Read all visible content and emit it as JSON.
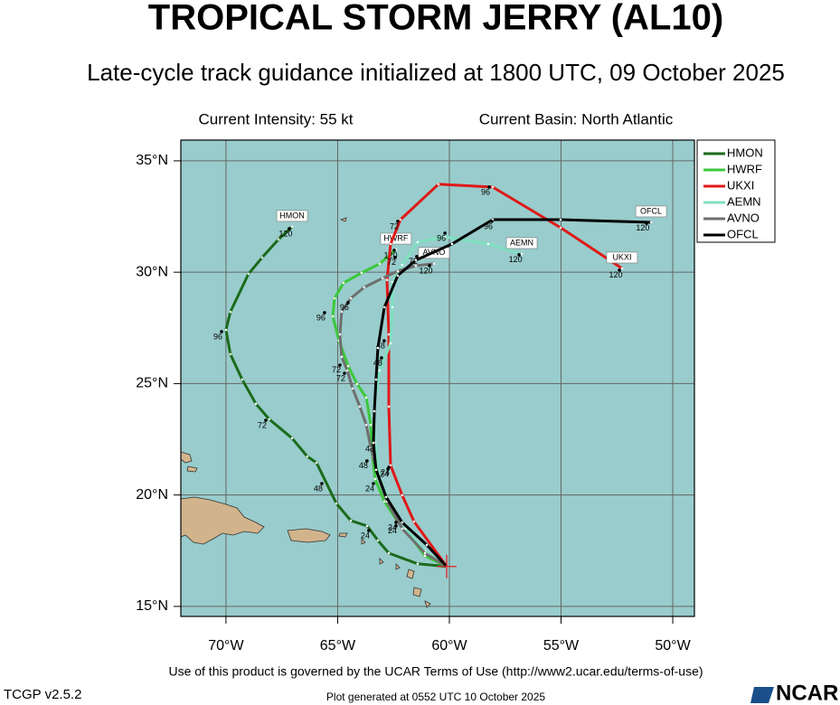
{
  "chart_data": {
    "type": "line",
    "title": "TROPICAL STORM JERRY (AL10)",
    "subtitle": "Late-cycle track guidance initialized at 1800 UTC, 09 October 2025",
    "info_left": "Current Intensity: 55 kt",
    "info_right": "Current Basin: North Atlantic",
    "footer": "Use of this product is governed by the UCAR Terms of Use (http://www2.ucar.edu/terms-of-use)",
    "version": "TCGP v2.5.2",
    "generated": "Plot generated at 0552 UTC   10 October 2025",
    "logo": "NCAR",
    "xlim": [
      -72.02,
      -49.03
    ],
    "ylim": [
      14.55,
      35.93
    ],
    "xticks": [
      {
        "value": -70,
        "label": "70°W"
      },
      {
        "value": -65,
        "label": "65°W"
      },
      {
        "value": -60,
        "label": "60°W"
      },
      {
        "value": -55,
        "label": "55°W"
      },
      {
        "value": -50,
        "label": "50°W"
      }
    ],
    "yticks": [
      {
        "value": 15,
        "label": "15°N"
      },
      {
        "value": 20,
        "label": "20°N"
      },
      {
        "value": 25,
        "label": "25°N"
      },
      {
        "value": 30,
        "label": "30°N"
      },
      {
        "value": 35,
        "label": "35°N"
      }
    ],
    "grid": true,
    "legend": "outside-top-right",
    "current_position": {
      "x": -60.12,
      "y": 16.79,
      "color": "#e02020"
    },
    "series": [
      {
        "name": "HMON",
        "color": "#1b6b1b",
        "x": [
          -60.12,
          -61.42,
          -62.71,
          -63.2,
          -63.68,
          -64.41,
          -65.06,
          -65.95,
          -66.36,
          -67.04,
          -68.06,
          -68.66,
          -69.27,
          -69.8,
          -70.0,
          -69.8,
          -68.99,
          -68.38,
          -67.65,
          -67.04
        ],
        "values": [
          16.79,
          16.91,
          17.39,
          17.96,
          18.61,
          18.85,
          19.62,
          21.45,
          21.73,
          22.55,
          23.4,
          24.09,
          25.18,
          26.32,
          27.41,
          28.22,
          29.93,
          30.66,
          31.47,
          32.04
        ],
        "hour_labels": [
          {
            "label": "24",
            "x": -63.77,
            "y": 18.16
          },
          {
            "label": "48",
            "x": -65.87,
            "y": 20.27
          },
          {
            "label": "72",
            "x": -68.38,
            "y": 23.11
          },
          {
            "label": "96",
            "x": -70.36,
            "y": 27.09
          },
          {
            "label": "120",
            "x": -67.33,
            "y": 31.71
          }
        ]
      },
      {
        "name": "HWRF",
        "color": "#3cc83c",
        "x": [
          -60.12,
          -61.09,
          -61.7,
          -62.31,
          -62.91,
          -63.32,
          -63.44,
          -63.52,
          -63.72,
          -64.13,
          -64.53,
          -64.94,
          -65.22,
          -65.14,
          -64.74,
          -63.93,
          -63.12,
          -62.39
        ],
        "values": [
          16.79,
          17.27,
          18.08,
          18.81,
          19.71,
          20.72,
          21.73,
          23.15,
          24.37,
          24.98,
          25.79,
          26.93,
          28.02,
          28.83,
          29.52,
          29.97,
          30.38,
          31.02
        ],
        "hour_labels": [
          {
            "label": "24",
            "x": -63.56,
            "y": 20.27
          },
          {
            "label": "48",
            "x": -63.85,
            "y": 21.29
          },
          {
            "label": "72",
            "x": -64.86,
            "y": 25.22
          },
          {
            "label": "96",
            "x": -65.75,
            "y": 27.94
          },
          {
            "label": "120",
            "x": -62.63,
            "y": 30.74
          }
        ]
      },
      {
        "name": "UKXI",
        "color": "#e01818",
        "x": [
          -60.12,
          -61.58,
          -62.11,
          -62.63,
          -62.71,
          -62.71,
          -62.79,
          -62.63,
          -62.19,
          -60.49,
          -58.06,
          -55.02,
          -52.27
        ],
        "values": [
          16.79,
          18.81,
          19.99,
          21.33,
          23.97,
          27.21,
          29.65,
          31.27,
          32.36,
          33.95,
          33.82,
          32.0,
          30.17
        ],
        "hour_labels": [
          {
            "label": "24",
            "x": -62.87,
            "y": 21.0
          },
          {
            "label": "72",
            "x": -62.47,
            "y": 32.04
          },
          {
            "label": "96",
            "x": -58.38,
            "y": 33.58
          },
          {
            "label": "120",
            "x": -52.55,
            "y": 29.85
          }
        ]
      },
      {
        "name": "AEMN",
        "color": "#7fe0c0",
        "x": [
          -60.12,
          -61.09,
          -61.98,
          -62.63,
          -63.12,
          -63.32,
          -63.4,
          -63.32,
          -63.12,
          -62.63,
          -62.55,
          -62.55,
          -62.11,
          -61.42,
          -60.2,
          -58.26,
          -56.76
        ],
        "values": [
          16.79,
          17.47,
          18.49,
          19.5,
          20.72,
          22.34,
          23.56,
          24.37,
          25.59,
          26.81,
          28.43,
          29.56,
          30.33,
          31.35,
          31.59,
          31.27,
          30.82
        ],
        "hour_labels": [
          {
            "label": "24",
            "x": -62.55,
            "y": 18.37
          },
          {
            "label": "48",
            "x": -63.08,
            "y": 26.68
          },
          {
            "label": "72",
            "x": -61.62,
            "y": 30.46
          },
          {
            "label": "96",
            "x": -60.36,
            "y": 31.51
          },
          {
            "label": "120",
            "x": -57.04,
            "y": 30.54
          }
        ]
      },
      {
        "name": "AVNO",
        "color": "#6e6e6e",
        "x": [
          -60.12,
          -61.09,
          -62.11,
          -62.79,
          -63.2,
          -63.52,
          -63.72,
          -64.01,
          -64.33,
          -64.57,
          -64.82,
          -64.9,
          -64.82,
          -64.41,
          -63.81,
          -62.99,
          -62.31,
          -61.5,
          -60.69
        ],
        "values": [
          16.79,
          17.39,
          18.49,
          19.71,
          20.92,
          22.14,
          23.15,
          23.97,
          24.78,
          25.59,
          26.2,
          27.21,
          28.23,
          28.83,
          29.32,
          29.73,
          30.05,
          30.29,
          30.38
        ],
        "hour_labels": [
          {
            "label": "24",
            "x": -62.55,
            "y": 18.53
          },
          {
            "label": "48",
            "x": -63.56,
            "y": 22.06
          },
          {
            "label": "72",
            "x": -65.06,
            "y": 25.59
          },
          {
            "label": "96",
            "x": -64.7,
            "y": 28.39
          },
          {
            "label": "120",
            "x": -61.05,
            "y": 30.05
          }
        ]
      },
      {
        "name": "OFCL",
        "color": "#000000",
        "x": [
          -60.12,
          -61.01,
          -62.11,
          -62.83,
          -63.28,
          -63.4,
          -63.36,
          -63.28,
          -63.2,
          -62.91,
          -62.31,
          -61.5,
          -59.88,
          -58.06,
          -55.02,
          -50.97
        ],
        "values": [
          16.79,
          17.76,
          18.77,
          19.91,
          21.13,
          22.34,
          23.76,
          25.18,
          26.6,
          28.43,
          29.85,
          30.54,
          31.27,
          32.36,
          32.36,
          32.24
        ],
        "hour_labels": [
          {
            "label": "24",
            "x": -62.91,
            "y": 20.92
          },
          {
            "label": "48",
            "x": -63.2,
            "y": 25.91
          },
          {
            "label": "72",
            "x": -62.59,
            "y": 30.42
          },
          {
            "label": "96",
            "x": -58.26,
            "y": 32.04
          },
          {
            "label": "120",
            "x": -51.34,
            "y": 31.96
          }
        ]
      }
    ]
  }
}
